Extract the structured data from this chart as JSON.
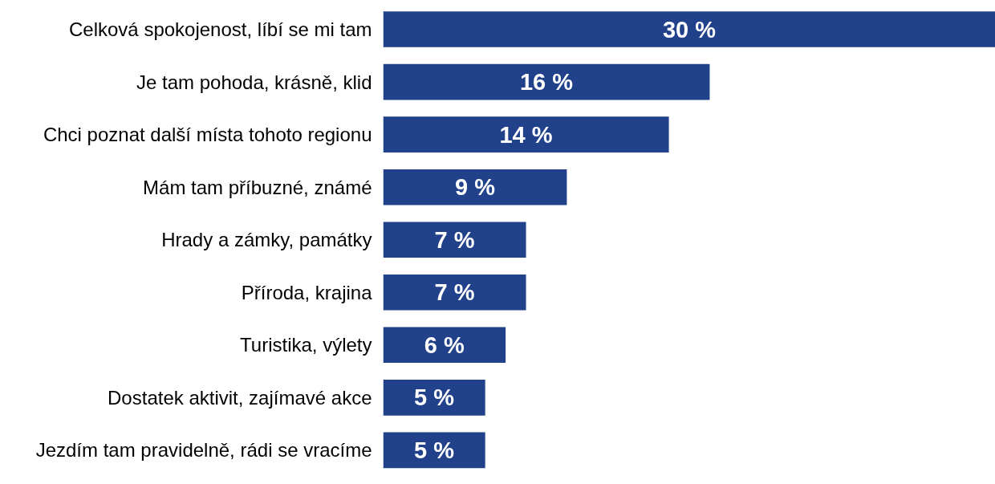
{
  "chart_data": {
    "type": "bar",
    "orientation": "horizontal",
    "categories": [
      "Celková spokojenost, líbí se mi tam",
      "Je tam pohoda, krásně, klid",
      "Chci poznat další místa tohoto regionu",
      "Mám tam příbuzné, známé",
      "Hrady a zámky, památky",
      "Příroda, krajina",
      "Turistika, výlety",
      "Dostatek aktivit, zajímavé akce",
      "Jezdím tam pravidelně, rádi se vracíme"
    ],
    "values": [
      30,
      16,
      14,
      9,
      7,
      7,
      6,
      5,
      5
    ],
    "value_labels": [
      "30 %",
      "16 %",
      "14 %",
      "9 %",
      "7 %",
      "7 %",
      "6 %",
      "5 %",
      "5 %"
    ],
    "color": "#21418a",
    "grid": false,
    "tick_labels": "y"
  }
}
